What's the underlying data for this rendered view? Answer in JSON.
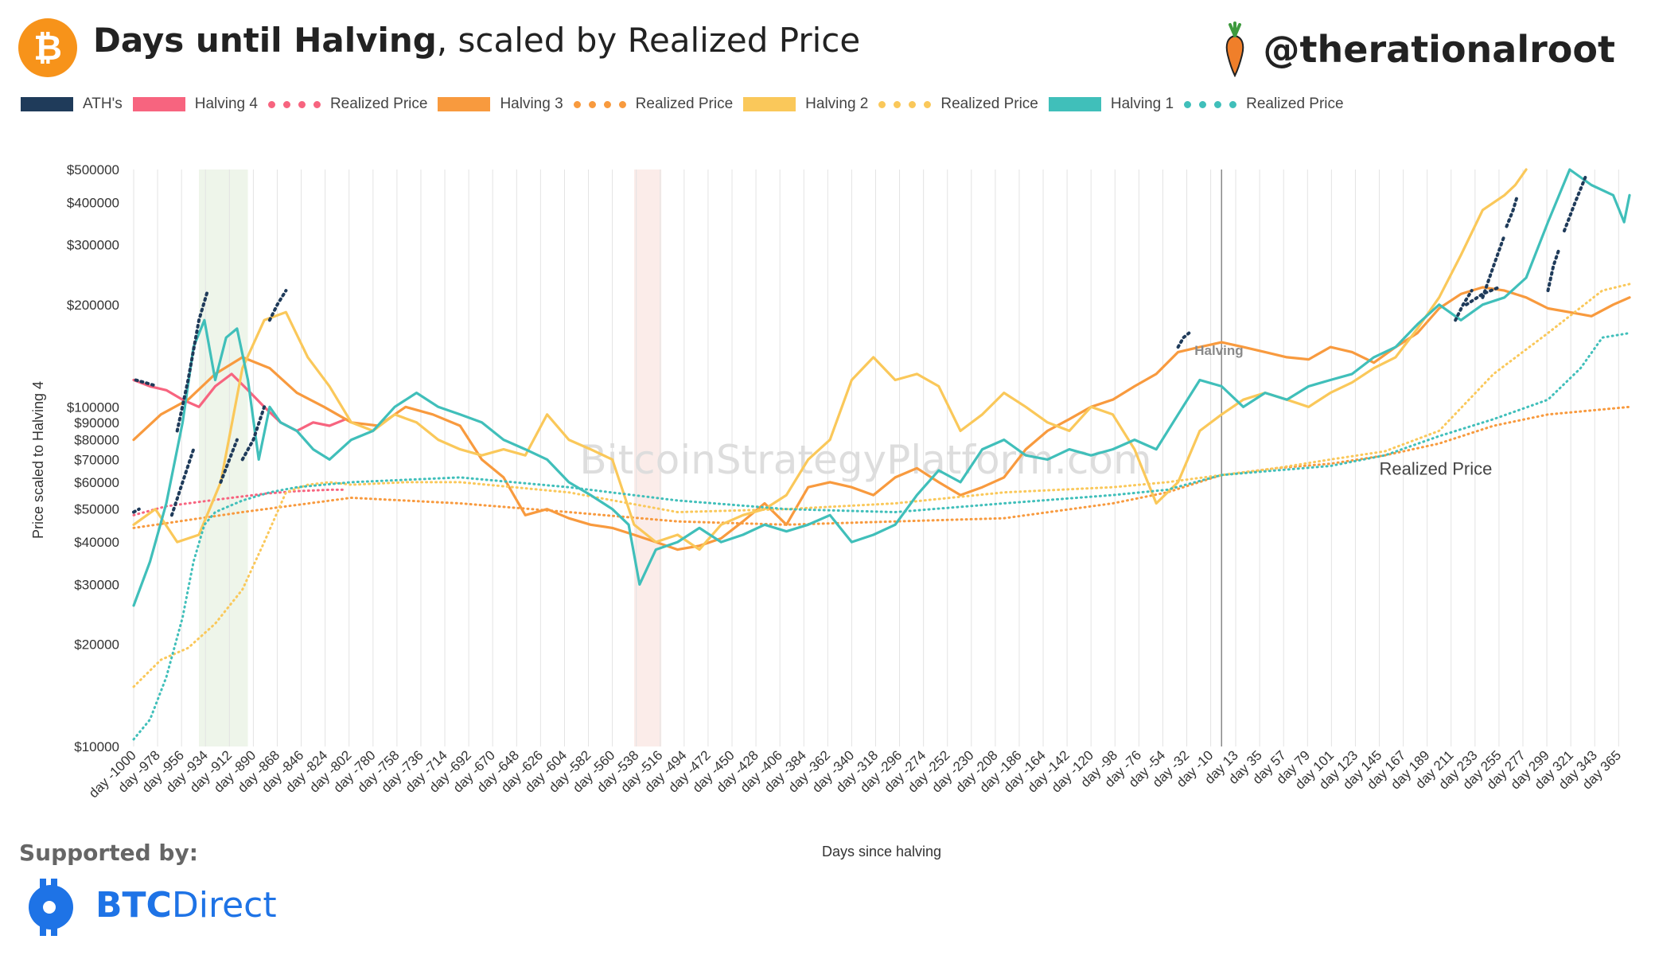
{
  "header": {
    "title_bold": "Days until Halving",
    "title_rest": ", scaled by Realized Price",
    "handle": "@therationalroot"
  },
  "legend": [
    {
      "label": "ATH's",
      "color": "#1F3B5A",
      "style": "solid"
    },
    {
      "label": "Halving 4",
      "color": "#F7647F",
      "style": "solid"
    },
    {
      "label": "Realized Price",
      "color": "#F7647F",
      "style": "dotted"
    },
    {
      "label": "Halving 3",
      "color": "#F89A3E",
      "style": "solid"
    },
    {
      "label": "Realized Price",
      "color": "#F89A3E",
      "style": "dotted"
    },
    {
      "label": "Halving 2",
      "color": "#FAC85A",
      "style": "solid"
    },
    {
      "label": "Realized Price",
      "color": "#FAC85A",
      "style": "dotted"
    },
    {
      "label": "Halving 1",
      "color": "#40BFBA",
      "style": "solid"
    },
    {
      "label": "Realized Price",
      "color": "#40BFBA",
      "style": "dotted"
    }
  ],
  "chart_data": {
    "type": "line",
    "ylabel": "Price scaled to Halving 4",
    "xlabel": "Days since halving",
    "yscale": "log",
    "ylim": [
      10000,
      500000
    ],
    "xlim": [
      -1000,
      375
    ],
    "grid": true,
    "legend_position": "top",
    "watermark": "BitcoinStrategyPlatform.com",
    "y_ticks": [
      10000,
      20000,
      30000,
      40000,
      50000,
      60000,
      70000,
      80000,
      90000,
      100000,
      200000,
      300000,
      400000,
      500000
    ],
    "y_tick_labels": [
      "$10000",
      "$20000",
      "$30000",
      "$40000",
      "$50000",
      "$60000",
      "$70000",
      "$80000",
      "$90000",
      "$100000",
      "$200000",
      "$300000",
      "$400000",
      "$500000"
    ],
    "x_ticks": [
      -1000,
      -978,
      -956,
      -934,
      -912,
      -890,
      -868,
      -846,
      -824,
      -802,
      -780,
      -758,
      -736,
      -714,
      -692,
      -670,
      -648,
      -626,
      -604,
      -582,
      -560,
      -538,
      -516,
      -494,
      -472,
      -450,
      -428,
      -406,
      -384,
      -362,
      -340,
      -318,
      -296,
      -274,
      -252,
      -230,
      -208,
      -186,
      -164,
      -142,
      -120,
      -98,
      -76,
      -54,
      -32,
      -10,
      13,
      35,
      57,
      79,
      101,
      123,
      145,
      167,
      189,
      211,
      233,
      255,
      277,
      299,
      321,
      343,
      365
    ],
    "x_tick_labels": [
      "day -1000",
      "day -978",
      "day -956",
      "day -934",
      "day -912",
      "day -890",
      "day -868",
      "day -846",
      "day -824",
      "day -802",
      "day -780",
      "day -758",
      "day -736",
      "day -714",
      "day -692",
      "day -670",
      "day -648",
      "day -626",
      "day -604",
      "day -582",
      "day -560",
      "day -538",
      "day -516",
      "day -494",
      "day -472",
      "day -450",
      "day -428",
      "day -406",
      "day -384",
      "day -362",
      "day -340",
      "day -318",
      "day -296",
      "day -274",
      "day -252",
      "day -230",
      "day -208",
      "day -186",
      "day -164",
      "day -142",
      "day -120",
      "day -98",
      "day -76",
      "day -54",
      "day -32",
      "day -10",
      "day 13",
      "day 35",
      "day 57",
      "day 79",
      "day 101",
      "day 123",
      "day 145",
      "day 167",
      "day 189",
      "day 211",
      "day 233",
      "day 255",
      "day 277",
      "day 299",
      "day 321",
      "day 343",
      "day 365"
    ],
    "annotations": [
      {
        "text": "Halving",
        "x": 0,
        "y": 150000
      },
      {
        "text": "Realized Price",
        "x": 145,
        "y": 68000
      }
    ],
    "shaded_regions": [
      {
        "x0": -940,
        "x1": -895,
        "color": "#eef5ea"
      },
      {
        "x0": -540,
        "x1": -515,
        "color": "#fbece9"
      }
    ],
    "series": [
      {
        "name": "Halving 4",
        "color": "#F7647F",
        "style": "solid",
        "x": [
          -1000,
          -985,
          -970,
          -955,
          -940,
          -925,
          -910,
          -895,
          -880,
          -865,
          -850,
          -835,
          -820,
          -805
        ],
        "y": [
          120000,
          115000,
          112000,
          105000,
          100000,
          115000,
          125000,
          112000,
          100000,
          90000,
          85000,
          90000,
          88000,
          92000
        ]
      },
      {
        "name": "Realized Price",
        "color": "#F7647F",
        "style": "dotted",
        "x": [
          -1000,
          -970,
          -940,
          -910,
          -880,
          -850,
          -820,
          -805
        ],
        "y": [
          48000,
          51000,
          52500,
          54000,
          55500,
          56500,
          57000,
          57000
        ]
      },
      {
        "name": "Halving 3",
        "color": "#F89A3E",
        "style": "solid",
        "x": [
          -1000,
          -975,
          -950,
          -925,
          -900,
          -875,
          -850,
          -825,
          -800,
          -775,
          -750,
          -725,
          -700,
          -680,
          -660,
          -640,
          -620,
          -600,
          -580,
          -560,
          -540,
          -520,
          -500,
          -480,
          -460,
          -440,
          -420,
          -400,
          -380,
          -360,
          -340,
          -320,
          -300,
          -280,
          -260,
          -240,
          -220,
          -200,
          -180,
          -160,
          -140,
          -120,
          -100,
          -80,
          -60,
          -40,
          -20,
          0,
          20,
          40,
          60,
          80,
          100,
          120,
          140,
          160,
          180,
          200,
          220,
          240,
          260,
          280,
          300,
          320,
          340,
          360,
          375
        ],
        "y": [
          80000,
          95000,
          105000,
          125000,
          140000,
          130000,
          110000,
          100000,
          90000,
          88000,
          100000,
          95000,
          88000,
          70000,
          62000,
          48000,
          50000,
          47000,
          45000,
          44000,
          42000,
          40000,
          38000,
          39000,
          41000,
          46000,
          52000,
          45000,
          58000,
          60000,
          58000,
          55000,
          62000,
          66000,
          60000,
          55000,
          58000,
          62000,
          75000,
          85000,
          92000,
          100000,
          105000,
          115000,
          125000,
          145000,
          150000,
          155000,
          150000,
          145000,
          140000,
          138000,
          150000,
          145000,
          135000,
          150000,
          165000,
          195000,
          215000,
          225000,
          220000,
          210000,
          195000,
          190000,
          185000,
          200000,
          210000
        ]
      },
      {
        "name": "Realized Price",
        "color": "#F89A3E",
        "style": "dotted",
        "x": [
          -1000,
          -900,
          -800,
          -700,
          -600,
          -500,
          -400,
          -300,
          -200,
          -100,
          -50,
          0,
          50,
          100,
          150,
          200,
          250,
          300,
          375
        ],
        "y": [
          44000,
          49000,
          54000,
          52000,
          49000,
          46000,
          45000,
          46000,
          47000,
          52000,
          56000,
          63000,
          66000,
          68000,
          72000,
          78000,
          88000,
          95000,
          100000
        ]
      },
      {
        "name": "Halving 2",
        "color": "#FAC85A",
        "style": "solid",
        "x": [
          -1000,
          -980,
          -960,
          -940,
          -920,
          -900,
          -880,
          -860,
          -840,
          -820,
          -800,
          -780,
          -760,
          -740,
          -720,
          -700,
          -680,
          -660,
          -640,
          -620,
          -600,
          -580,
          -560,
          -540,
          -520,
          -500,
          -480,
          -460,
          -440,
          -420,
          -400,
          -380,
          -360,
          -340,
          -320,
          -300,
          -280,
          -260,
          -240,
          -220,
          -200,
          -180,
          -160,
          -140,
          -120,
          -100,
          -80,
          -60,
          -40,
          -20,
          0,
          20,
          40,
          60,
          80,
          100,
          120,
          140,
          160,
          180,
          200,
          220,
          240,
          260,
          270,
          280
        ],
        "y": [
          45000,
          50000,
          40000,
          42000,
          60000,
          130000,
          180000,
          190000,
          140000,
          115000,
          90000,
          85000,
          95000,
          90000,
          80000,
          75000,
          72000,
          75000,
          72000,
          95000,
          80000,
          75000,
          70000,
          45000,
          40000,
          42000,
          38000,
          45000,
          48000,
          50000,
          55000,
          70000,
          80000,
          120000,
          140000,
          120000,
          125000,
          115000,
          85000,
          95000,
          110000,
          100000,
          90000,
          85000,
          100000,
          95000,
          75000,
          52000,
          60000,
          85000,
          95000,
          105000,
          110000,
          105000,
          100000,
          110000,
          118000,
          130000,
          140000,
          170000,
          210000,
          280000,
          380000,
          420000,
          450000,
          500000
        ]
      },
      {
        "name": "Realized Price",
        "color": "#FAC85A",
        "style": "dotted",
        "x": [
          -1000,
          -975,
          -950,
          -925,
          -900,
          -880,
          -860,
          -840,
          -820,
          -800,
          -750,
          -700,
          -600,
          -500,
          -400,
          -300,
          -200,
          -100,
          -50,
          0,
          50,
          100,
          150,
          200,
          250,
          300,
          350,
          375
        ],
        "y": [
          15000,
          18000,
          19500,
          23000,
          29000,
          40000,
          56000,
          59000,
          60000,
          59000,
          60000,
          60000,
          56000,
          49000,
          50000,
          52000,
          56000,
          58000,
          60000,
          63000,
          66000,
          70000,
          74000,
          85000,
          125000,
          165000,
          220000,
          230000
        ]
      },
      {
        "name": "Halving 1",
        "color": "#40BFBA",
        "style": "solid",
        "x": [
          -1000,
          -985,
          -970,
          -955,
          -945,
          -935,
          -925,
          -915,
          -905,
          -895,
          -885,
          -875,
          -865,
          -850,
          -835,
          -820,
          -800,
          -780,
          -760,
          -740,
          -720,
          -700,
          -680,
          -660,
          -640,
          -620,
          -600,
          -580,
          -560,
          -545,
          -535,
          -520,
          -500,
          -480,
          -460,
          -440,
          -420,
          -400,
          -380,
          -360,
          -340,
          -320,
          -300,
          -280,
          -260,
          -240,
          -220,
          -200,
          -180,
          -160,
          -140,
          -120,
          -100,
          -80,
          -60,
          -40,
          -20,
          0,
          20,
          40,
          60,
          80,
          100,
          120,
          140,
          160,
          180,
          200,
          220,
          240,
          260,
          280,
          300,
          320,
          340,
          360,
          370,
          375
        ],
        "y": [
          26000,
          35000,
          52000,
          90000,
          150000,
          180000,
          120000,
          160000,
          170000,
          120000,
          70000,
          100000,
          90000,
          85000,
          75000,
          70000,
          80000,
          85000,
          100000,
          110000,
          100000,
          95000,
          90000,
          80000,
          75000,
          70000,
          60000,
          55000,
          50000,
          45000,
          30000,
          38000,
          40000,
          44000,
          40000,
          42000,
          45000,
          43000,
          45000,
          48000,
          40000,
          42000,
          45000,
          55000,
          65000,
          60000,
          75000,
          80000,
          72000,
          70000,
          75000,
          72000,
          75000,
          80000,
          75000,
          95000,
          120000,
          115000,
          100000,
          110000,
          105000,
          115000,
          120000,
          125000,
          140000,
          150000,
          175000,
          200000,
          180000,
          200000,
          210000,
          240000,
          350000,
          500000,
          450000,
          420000,
          350000,
          420000
        ]
      },
      {
        "name": "Realized Price",
        "color": "#40BFBA",
        "style": "dotted",
        "x": [
          -1000,
          -985,
          -970,
          -955,
          -945,
          -935,
          -925,
          -900,
          -875,
          -850,
          -800,
          -750,
          -700,
          -600,
          -500,
          -400,
          -300,
          -200,
          -100,
          -50,
          0,
          50,
          100,
          150,
          200,
          250,
          300,
          330,
          350,
          375
        ],
        "y": [
          10500,
          12000,
          16000,
          24000,
          35000,
          45000,
          49000,
          53000,
          56000,
          58000,
          60000,
          61000,
          62000,
          58000,
          53000,
          50000,
          49000,
          52000,
          55000,
          57000,
          63000,
          65000,
          67000,
          72000,
          82000,
          92000,
          105000,
          130000,
          160000,
          165000
        ]
      }
    ],
    "ath_series": {
      "name": "ATH's",
      "color": "#1F3B5A",
      "segments": [
        {
          "x": [
            -1000,
            -995
          ],
          "y": [
            49000,
            50000
          ]
        },
        {
          "x": [
            -998,
            -990,
            -982
          ],
          "y": [
            120000,
            118000,
            116000
          ]
        },
        {
          "x": [
            -965,
            -955,
            -945
          ],
          "y": [
            48000,
            60000,
            75000
          ]
        },
        {
          "x": [
            -960,
            -950,
            -940,
            -932
          ],
          "y": [
            85000,
            120000,
            180000,
            220000
          ]
        },
        {
          "x": [
            -920,
            -912,
            -905
          ],
          "y": [
            60000,
            70000,
            80000
          ]
        },
        {
          "x": [
            -900,
            -890,
            -880
          ],
          "y": [
            70000,
            80000,
            100000
          ]
        },
        {
          "x": [
            -875,
            -868,
            -860
          ],
          "y": [
            180000,
            200000,
            220000
          ]
        },
        {
          "x": [
            -40,
            -35,
            -30
          ],
          "y": [
            150000,
            160000,
            165000
          ]
        },
        {
          "x": [
            215,
            222,
            230
          ],
          "y": [
            180000,
            200000,
            220000
          ]
        },
        {
          "x": [
            240,
            250,
            260
          ],
          "y": [
            210000,
            260000,
            320000
          ]
        },
        {
          "x": [
            262,
            268,
            272
          ],
          "y": [
            340000,
            380000,
            420000
          ]
        },
        {
          "x": [
            225,
            240,
            255
          ],
          "y": [
            200000,
            215000,
            225000
          ]
        },
        {
          "x": [
            300,
            305,
            310
          ],
          "y": [
            220000,
            260000,
            290000
          ]
        },
        {
          "x": [
            315,
            325,
            335
          ],
          "y": [
            330000,
            400000,
            480000
          ]
        }
      ]
    }
  },
  "footer": {
    "supported_by": "Supported by:",
    "btcdirect_bold": "BTC",
    "btcdirect_rest": "Direct"
  }
}
